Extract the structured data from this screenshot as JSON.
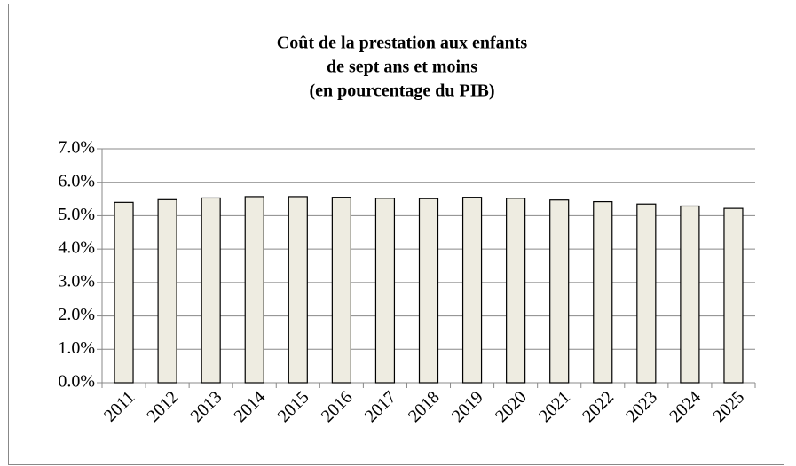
{
  "chart_data": {
    "type": "bar",
    "title": [
      "Coût de la prestation aux enfants",
      "de sept ans et moins",
      "(en pourcentage du PIB)"
    ],
    "categories": [
      "2011",
      "2012",
      "2013",
      "2014",
      "2015",
      "2016",
      "2017",
      "2018",
      "2019",
      "2020",
      "2021",
      "2022",
      "2023",
      "2024",
      "2025"
    ],
    "values": [
      5.4,
      5.48,
      5.53,
      5.57,
      5.57,
      5.55,
      5.52,
      5.51,
      5.55,
      5.52,
      5.47,
      5.42,
      5.35,
      5.29,
      5.22
    ],
    "color": "#eeece1",
    "ylim": [
      0,
      7
    ],
    "yticks": [
      {
        "value": 0,
        "label": "0.0%"
      },
      {
        "value": 1,
        "label": "1.0%"
      },
      {
        "value": 2,
        "label": "2.0%"
      },
      {
        "value": 3,
        "label": "3.0%"
      },
      {
        "value": 4,
        "label": "4.0%"
      },
      {
        "value": 5,
        "label": "5.0%"
      },
      {
        "value": 6,
        "label": "6.0%"
      },
      {
        "value": 7,
        "label": "7.0%"
      }
    ],
    "grid": true
  }
}
